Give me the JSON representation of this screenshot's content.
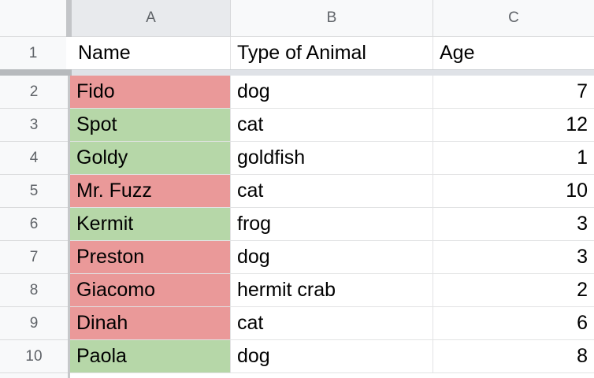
{
  "app": "spreadsheet-grid",
  "colors": {
    "red": "#ea9999",
    "green": "#b6d7a8",
    "selected_header_bg": "#e8eaed",
    "header_bg": "#f8f9fa",
    "freeze_bar_gray": "#c3c5c8",
    "freeze_shadow": "#dfe2e7",
    "header_text": "#5f6368",
    "cell_text": "#000000"
  },
  "column_headers": [
    "A",
    "B",
    "C"
  ],
  "selected_column": "A",
  "header_row": {
    "number": "1",
    "name": "Name",
    "type": "Type of Animal",
    "age": "Age"
  },
  "rows": [
    {
      "number": "2",
      "name": "Fido",
      "type": "dog",
      "age": "7",
      "highlight": "red"
    },
    {
      "number": "3",
      "name": "Spot",
      "type": "cat",
      "age": "12",
      "highlight": "green"
    },
    {
      "number": "4",
      "name": "Goldy",
      "type": "goldfish",
      "age": "1",
      "highlight": "green"
    },
    {
      "number": "5",
      "name": "Mr. Fuzz",
      "type": "cat",
      "age": "10",
      "highlight": "red"
    },
    {
      "number": "6",
      "name": "Kermit",
      "type": "frog",
      "age": "3",
      "highlight": "green"
    },
    {
      "number": "7",
      "name": "Preston",
      "type": "dog",
      "age": "3",
      "highlight": "red"
    },
    {
      "number": "8",
      "name": "Giacomo",
      "type": "hermit crab",
      "age": "2",
      "highlight": "red"
    },
    {
      "number": "9",
      "name": "Dinah",
      "type": "cat",
      "age": "6",
      "highlight": "red"
    },
    {
      "number": "10",
      "name": "Paola",
      "type": "dog",
      "age": "8",
      "highlight": "green"
    }
  ]
}
